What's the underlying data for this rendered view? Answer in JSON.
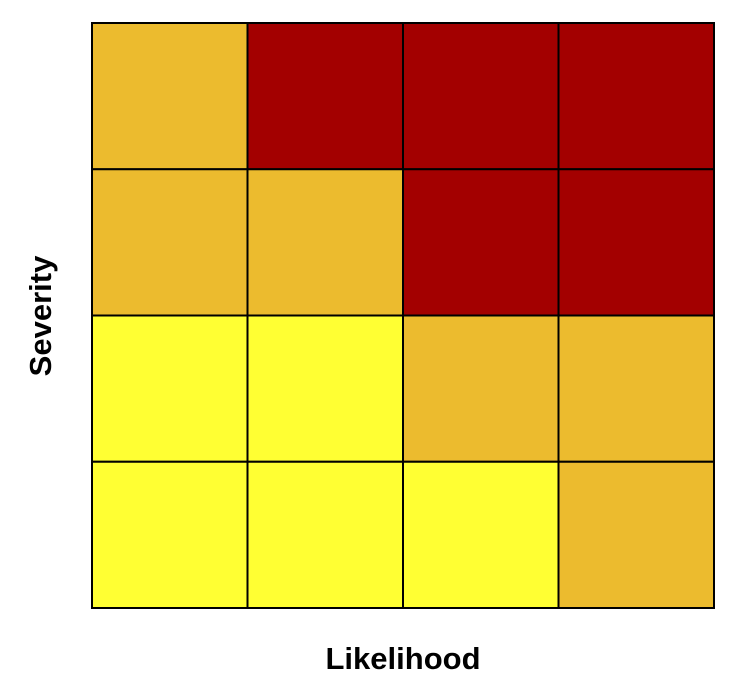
{
  "chart_data": {
    "type": "heatmap",
    "xlabel": "Likelihood",
    "ylabel": "Severity",
    "rows": 4,
    "cols": 4,
    "row_order": "top-to-bottom",
    "legend": "none",
    "grid": true,
    "palette": {
      "low": "#ffff33",
      "medium": "#ecbb2e",
      "high": "#a30000",
      "gridline": "#000000"
    },
    "cells": [
      [
        "medium",
        "high",
        "high",
        "high"
      ],
      [
        "medium",
        "medium",
        "high",
        "high"
      ],
      [
        "low",
        "low",
        "medium",
        "medium"
      ],
      [
        "low",
        "low",
        "low",
        "medium"
      ]
    ]
  }
}
